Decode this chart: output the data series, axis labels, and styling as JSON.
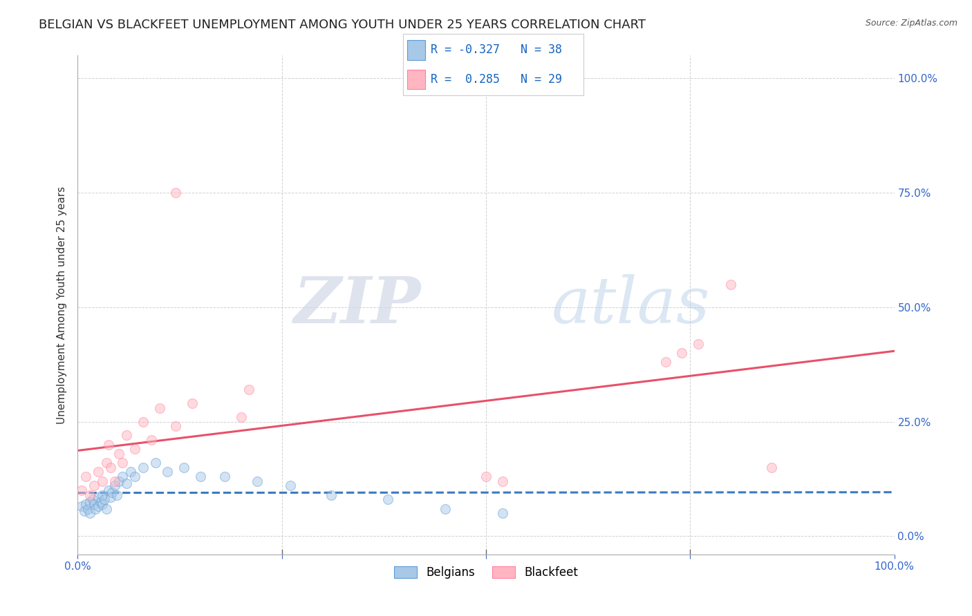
{
  "title": "BELGIAN VS BLACKFEET UNEMPLOYMENT AMONG YOUTH UNDER 25 YEARS CORRELATION CHART",
  "source": "Source: ZipAtlas.com",
  "ylabel": "Unemployment Among Youth under 25 years",
  "watermark_zip": "ZIP",
  "watermark_atlas": "atlas",
  "xlim": [
    0.0,
    1.0
  ],
  "ylim": [
    -0.04,
    1.05
  ],
  "xticks": [
    0.0,
    0.25,
    0.5,
    0.75,
    1.0
  ],
  "yticks": [
    0.0,
    0.25,
    0.5,
    0.75,
    1.0
  ],
  "xtick_labels": [
    "0.0%",
    "",
    "",
    "",
    "100.0%"
  ],
  "ytick_labels_right": [
    "0.0%",
    "25.0%",
    "50.0%",
    "75.0%",
    "100.0%"
  ],
  "belgian_color": "#a8c8e8",
  "blackfeet_color": "#ffb6c1",
  "belgian_edge_color": "#5b9bd5",
  "blackfeet_edge_color": "#ff7fa0",
  "trend_belgian_color": "#3a7abf",
  "trend_blackfeet_color": "#e8506a",
  "R_belgian": -0.327,
  "N_belgian": 38,
  "R_blackfeet": 0.285,
  "N_blackfeet": 29,
  "legend_color": "#1565c0",
  "title_fontsize": 13,
  "axis_label_fontsize": 11,
  "tick_fontsize": 11,
  "marker_size": 100,
  "marker_alpha": 0.5,
  "line_width": 2.2,
  "belgian_x": [
    0.005,
    0.008,
    0.01,
    0.012,
    0.015,
    0.015,
    0.018,
    0.02,
    0.022,
    0.025,
    0.025,
    0.028,
    0.03,
    0.03,
    0.033,
    0.035,
    0.038,
    0.04,
    0.042,
    0.045,
    0.048,
    0.05,
    0.055,
    0.06,
    0.065,
    0.07,
    0.08,
    0.095,
    0.11,
    0.13,
    0.15,
    0.18,
    0.22,
    0.26,
    0.31,
    0.38,
    0.45,
    0.52
  ],
  "belgian_y": [
    0.065,
    0.055,
    0.07,
    0.06,
    0.075,
    0.05,
    0.08,
    0.07,
    0.06,
    0.085,
    0.065,
    0.075,
    0.09,
    0.07,
    0.08,
    0.06,
    0.1,
    0.085,
    0.095,
    0.11,
    0.09,
    0.12,
    0.13,
    0.115,
    0.14,
    0.13,
    0.15,
    0.16,
    0.14,
    0.15,
    0.13,
    0.13,
    0.12,
    0.11,
    0.09,
    0.08,
    0.06,
    0.05
  ],
  "blackfeet_x": [
    0.005,
    0.01,
    0.015,
    0.02,
    0.025,
    0.03,
    0.035,
    0.038,
    0.04,
    0.045,
    0.05,
    0.055,
    0.06,
    0.07,
    0.08,
    0.09,
    0.1,
    0.12,
    0.14,
    0.2,
    0.21,
    0.5,
    0.52,
    0.72,
    0.74,
    0.76,
    0.8,
    0.85,
    0.12
  ],
  "blackfeet_y": [
    0.1,
    0.13,
    0.09,
    0.11,
    0.14,
    0.12,
    0.16,
    0.2,
    0.15,
    0.12,
    0.18,
    0.16,
    0.22,
    0.19,
    0.25,
    0.21,
    0.28,
    0.24,
    0.29,
    0.26,
    0.32,
    0.13,
    0.12,
    0.38,
    0.4,
    0.42,
    0.55,
    0.15,
    0.75
  ]
}
